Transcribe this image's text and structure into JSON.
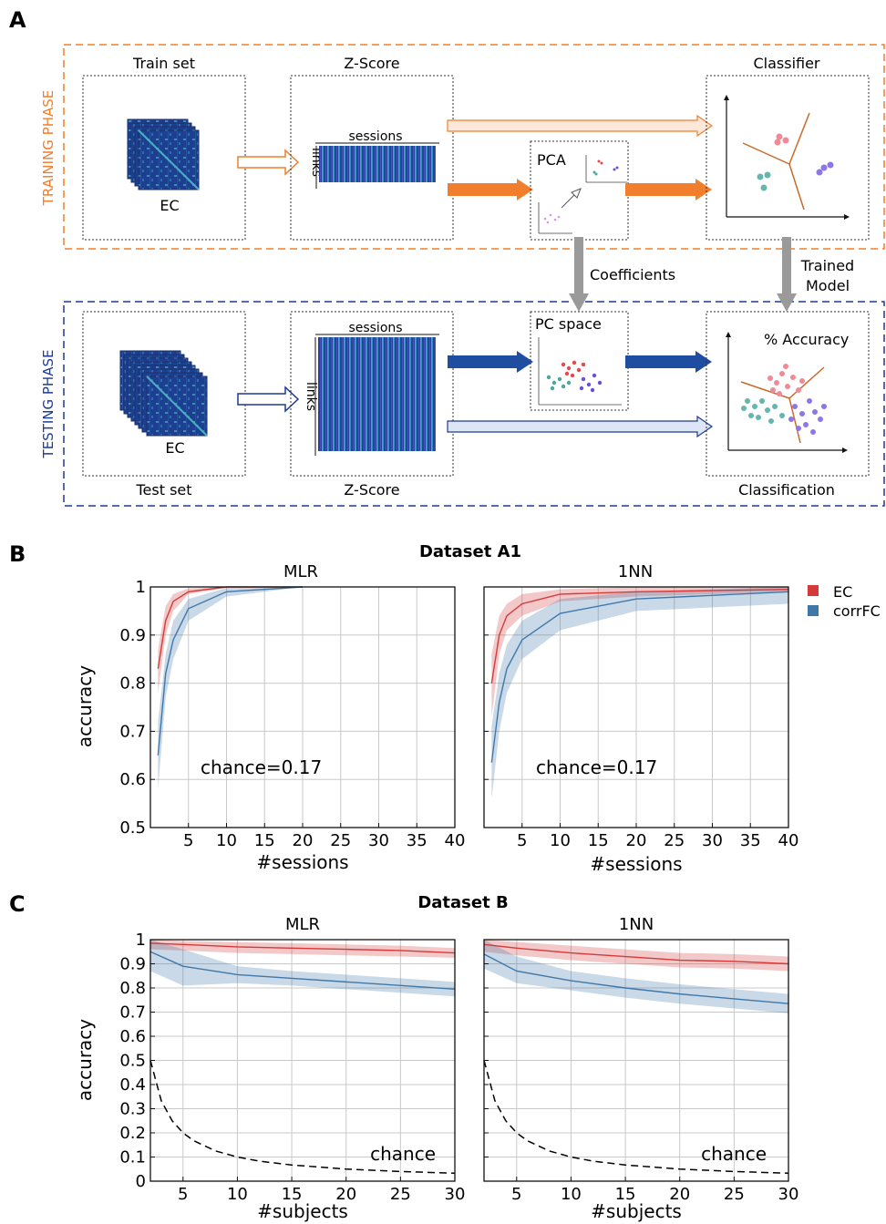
{
  "panel_a": {
    "letter": "A",
    "training_label": "TRAINING PHASE",
    "testing_label": "TESTING PHASE",
    "train_set": "Train set",
    "zscore_top": "Z-Score",
    "classifier": "Classifier",
    "ec_label": "EC",
    "sessions_label": "sessions",
    "links_label": "links",
    "pca": "PCA",
    "coefficients": "Coefficients",
    "trained_model_line1": "Trained",
    "trained_model_line2": "Model",
    "pc_space": "PC space",
    "accuracy_label": "% Accuracy",
    "test_set": "Test set",
    "zscore_bottom": "Z-Score",
    "classification": "Classification",
    "colors": {
      "training": "#f07e2c",
      "testing": "#1f3a93",
      "dot1": "#e8474f",
      "dot2": "#49a89a",
      "dot3": "#6a4fd8"
    }
  },
  "panel_b": {
    "letter": "B",
    "title": "Dataset A1",
    "legend": [
      {
        "label": "EC",
        "color": "#d43a3a"
      },
      {
        "label": "corrFC",
        "color": "#3f78a8"
      }
    ]
  },
  "panel_c": {
    "letter": "C",
    "title": "Dataset B"
  },
  "chart_data": [
    {
      "id": "b-mlr",
      "type": "line",
      "title": "MLR",
      "xlabel": "#sessions",
      "ylabel": "accuracy",
      "xlim": [
        0,
        40
      ],
      "ylim": [
        0.5,
        1.0
      ],
      "xticks": [
        5,
        10,
        15,
        20,
        25,
        30,
        35,
        40
      ],
      "yticks": [
        0.5,
        0.6,
        0.7,
        0.8,
        0.9,
        1.0
      ],
      "ytick_labels": [
        "0.5",
        "0.6",
        "0.7",
        "0.8",
        "0.9",
        "1"
      ],
      "grid": true,
      "annotation": "chance=0.17",
      "series": [
        {
          "name": "EC",
          "color": "#d43a3a",
          "x": [
            1,
            2,
            3,
            5,
            10,
            20
          ],
          "y": [
            0.83,
            0.93,
            0.97,
            0.99,
            1.0,
            1.0
          ],
          "lower": [
            0.78,
            0.9,
            0.95,
            0.985,
            0.998,
            1.0
          ],
          "upper": [
            0.87,
            0.96,
            0.985,
            0.997,
            1.0,
            1.0
          ]
        },
        {
          "name": "corrFC",
          "color": "#3f78a8",
          "x": [
            1,
            2,
            3,
            5,
            10,
            20
          ],
          "y": [
            0.65,
            0.82,
            0.89,
            0.955,
            0.99,
            1.0
          ],
          "lower": [
            0.58,
            0.77,
            0.85,
            0.93,
            0.98,
            1.0
          ],
          "upper": [
            0.72,
            0.86,
            0.93,
            0.975,
            0.998,
            1.0
          ]
        }
      ]
    },
    {
      "id": "b-1nn",
      "type": "line",
      "title": "1NN",
      "xlabel": "#sessions",
      "ylabel": "",
      "xlim": [
        0,
        40
      ],
      "ylim": [
        0.5,
        1.0
      ],
      "xticks": [
        5,
        10,
        15,
        20,
        25,
        30,
        35,
        40
      ],
      "yticks": [
        0.5,
        0.6,
        0.7,
        0.8,
        0.9,
        1.0
      ],
      "ytick_labels": [],
      "grid": true,
      "annotation": "chance=0.17",
      "series": [
        {
          "name": "EC",
          "color": "#d43a3a",
          "x": [
            1,
            2,
            3,
            5,
            10,
            20,
            40
          ],
          "y": [
            0.8,
            0.9,
            0.94,
            0.965,
            0.985,
            0.99,
            0.995
          ],
          "lower": [
            0.73,
            0.86,
            0.91,
            0.94,
            0.97,
            0.98,
            0.99
          ],
          "upper": [
            0.86,
            0.94,
            0.965,
            0.985,
            0.995,
            1.0,
            1.0
          ]
        },
        {
          "name": "corrFC",
          "color": "#3f78a8",
          "x": [
            1,
            2,
            3,
            5,
            10,
            20,
            40
          ],
          "y": [
            0.635,
            0.76,
            0.83,
            0.89,
            0.945,
            0.975,
            0.99
          ],
          "lower": [
            0.56,
            0.7,
            0.78,
            0.85,
            0.91,
            0.95,
            0.965
          ],
          "upper": [
            0.71,
            0.82,
            0.88,
            0.93,
            0.975,
            0.99,
            1.0
          ]
        }
      ]
    },
    {
      "id": "c-mlr",
      "type": "line",
      "title": "MLR",
      "xlabel": "#subjects",
      "ylabel": "accuracy",
      "xlim": [
        2,
        30
      ],
      "ylim": [
        0,
        1.0
      ],
      "xticks": [
        5,
        10,
        15,
        20,
        25,
        30
      ],
      "yticks": [
        0,
        0.1,
        0.2,
        0.3,
        0.4,
        0.5,
        0.6,
        0.7,
        0.8,
        0.9,
        1.0
      ],
      "ytick_labels": [
        "0",
        "0.1",
        "0.2",
        "0.3",
        "0.4",
        "0.5",
        "0.6",
        "0.7",
        "0.8",
        "0.9",
        "1"
      ],
      "grid": true,
      "annotation": "chance",
      "series": [
        {
          "name": "EC",
          "color": "#d43a3a",
          "x": [
            2,
            5,
            10,
            15,
            20,
            25,
            30
          ],
          "y": [
            0.985,
            0.98,
            0.97,
            0.965,
            0.96,
            0.955,
            0.945
          ],
          "lower": [
            0.96,
            0.955,
            0.945,
            0.94,
            0.935,
            0.93,
            0.925
          ],
          "upper": [
            1.0,
            0.995,
            0.99,
            0.985,
            0.98,
            0.975,
            0.965
          ]
        },
        {
          "name": "corrFC",
          "color": "#3f78a8",
          "x": [
            2,
            5,
            10,
            15,
            20,
            25,
            30
          ],
          "y": [
            0.95,
            0.89,
            0.855,
            0.84,
            0.825,
            0.81,
            0.795
          ],
          "lower": [
            0.87,
            0.81,
            0.82,
            0.81,
            0.795,
            0.78,
            0.765
          ],
          "upper": [
            1.0,
            0.96,
            0.89,
            0.87,
            0.855,
            0.84,
            0.825
          ]
        },
        {
          "name": "chance",
          "color": "#000000",
          "dashed": true,
          "x": [
            2,
            3,
            4,
            5,
            6,
            8,
            10,
            12,
            15,
            20,
            25,
            30
          ],
          "y": [
            0.5,
            0.333,
            0.25,
            0.2,
            0.167,
            0.125,
            0.1,
            0.083,
            0.067,
            0.05,
            0.04,
            0.033
          ]
        }
      ]
    },
    {
      "id": "c-1nn",
      "type": "line",
      "title": "1NN",
      "xlabel": "#subjects",
      "ylabel": "",
      "xlim": [
        2,
        30
      ],
      "ylim": [
        0,
        1.0
      ],
      "xticks": [
        5,
        10,
        15,
        20,
        25,
        30
      ],
      "yticks": [
        0,
        0.1,
        0.2,
        0.3,
        0.4,
        0.5,
        0.6,
        0.7,
        0.8,
        0.9,
        1.0
      ],
      "ytick_labels": [],
      "grid": true,
      "annotation": "chance",
      "series": [
        {
          "name": "EC",
          "color": "#d43a3a",
          "x": [
            2,
            5,
            10,
            15,
            20,
            25,
            30
          ],
          "y": [
            0.98,
            0.965,
            0.945,
            0.93,
            0.915,
            0.91,
            0.9
          ],
          "lower": [
            0.95,
            0.935,
            0.915,
            0.9,
            0.885,
            0.88,
            0.87
          ],
          "upper": [
            1.0,
            0.99,
            0.975,
            0.96,
            0.945,
            0.94,
            0.93
          ]
        },
        {
          "name": "corrFC",
          "color": "#3f78a8",
          "x": [
            2,
            5,
            10,
            15,
            20,
            25,
            30
          ],
          "y": [
            0.94,
            0.87,
            0.83,
            0.8,
            0.775,
            0.755,
            0.735
          ],
          "lower": [
            0.88,
            0.82,
            0.79,
            0.76,
            0.735,
            0.715,
            0.695
          ],
          "upper": [
            1.0,
            0.93,
            0.87,
            0.84,
            0.815,
            0.795,
            0.775
          ]
        },
        {
          "name": "chance",
          "color": "#000000",
          "dashed": true,
          "x": [
            2,
            3,
            4,
            5,
            6,
            8,
            10,
            12,
            15,
            20,
            25,
            30
          ],
          "y": [
            0.5,
            0.333,
            0.25,
            0.2,
            0.167,
            0.125,
            0.1,
            0.083,
            0.067,
            0.05,
            0.04,
            0.033
          ]
        }
      ]
    }
  ]
}
